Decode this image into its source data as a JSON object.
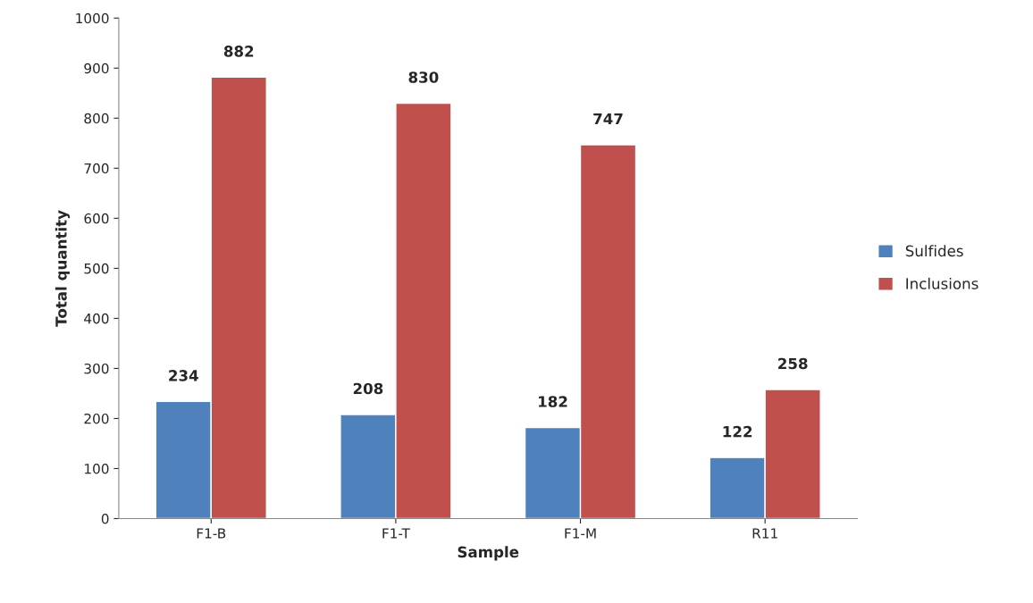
{
  "chart_data": {
    "type": "bar",
    "xlabel": "Sample",
    "ylabel": "Total quantity",
    "categories": [
      "F1-B",
      "F1-T",
      "F1-M",
      "R11"
    ],
    "series": [
      {
        "name": "Sulfides",
        "color": "#4f81bd",
        "values": [
          234,
          208,
          182,
          122
        ]
      },
      {
        "name": "Inclusions",
        "color": "#c0504d",
        "values": [
          882,
          830,
          747,
          258
        ]
      }
    ],
    "ylim": [
      0,
      1000
    ],
    "yticks": [
      0,
      100,
      200,
      300,
      400,
      500,
      600,
      700,
      800,
      900,
      1000
    ],
    "grid": false,
    "legend": "right",
    "data_labels": true
  }
}
